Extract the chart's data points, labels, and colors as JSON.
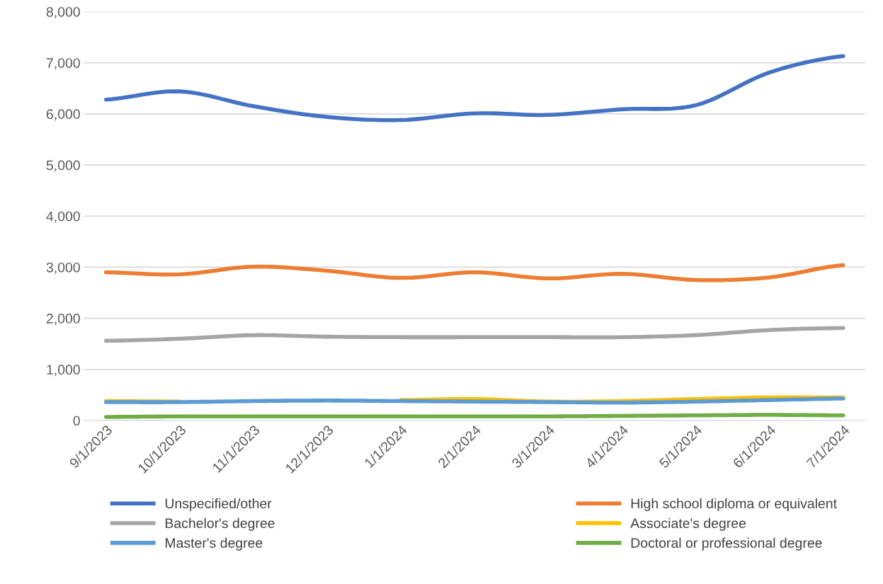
{
  "chart_data": {
    "type": "line",
    "categories": [
      "9/1/2023",
      "10/1/2023",
      "11/1/2023",
      "12/1/2023",
      "1/1/2024",
      "2/1/2024",
      "3/1/2024",
      "4/1/2024",
      "5/1/2024",
      "6/1/2024",
      "7/1/2024"
    ],
    "series": [
      {
        "name": "Unspecified/other",
        "color": "#4472c4",
        "values": [
          6280,
          6440,
          6150,
          5940,
          5880,
          6010,
          5980,
          6090,
          6170,
          6810,
          7130
        ]
      },
      {
        "name": "High school diploma or equivalent",
        "color": "#ed7d31",
        "values": [
          2900,
          2860,
          3010,
          2930,
          2790,
          2900,
          2780,
          2870,
          2750,
          2800,
          3040
        ]
      },
      {
        "name": "Bachelor's degree",
        "color": "#a5a5a5",
        "values": [
          1560,
          1600,
          1670,
          1640,
          1630,
          1630,
          1630,
          1630,
          1670,
          1770,
          1810
        ]
      },
      {
        "name": "Associate's degree",
        "color": "#ffc000",
        "values": [
          380,
          370,
          null,
          null,
          400,
          420,
          370,
          380,
          420,
          450,
          450
        ]
      },
      {
        "name": "Master's degree",
        "color": "#5b9bd5",
        "values": [
          360,
          360,
          380,
          390,
          380,
          370,
          360,
          350,
          370,
          400,
          430
        ]
      },
      {
        "name": "Doctoral or professional degree",
        "color": "#70ad47",
        "values": [
          70,
          80,
          80,
          80,
          80,
          80,
          80,
          90,
          100,
          110,
          100
        ]
      }
    ],
    "ylim": [
      0,
      8000
    ],
    "yticks": [
      {
        "value": 0,
        "label": "0"
      },
      {
        "value": 1000,
        "label": "1,000"
      },
      {
        "value": 2000,
        "label": "2,000"
      },
      {
        "value": 3000,
        "label": "3,000"
      },
      {
        "value": 4000,
        "label": "4,000"
      },
      {
        "value": 5000,
        "label": "5,000"
      },
      {
        "value": 6000,
        "label": "6,000"
      },
      {
        "value": 7000,
        "label": "7,000"
      },
      {
        "value": 8000,
        "label": "8,000"
      }
    ],
    "grid": "y",
    "legend": "bottom",
    "marker": "none",
    "line_style": "solid"
  }
}
